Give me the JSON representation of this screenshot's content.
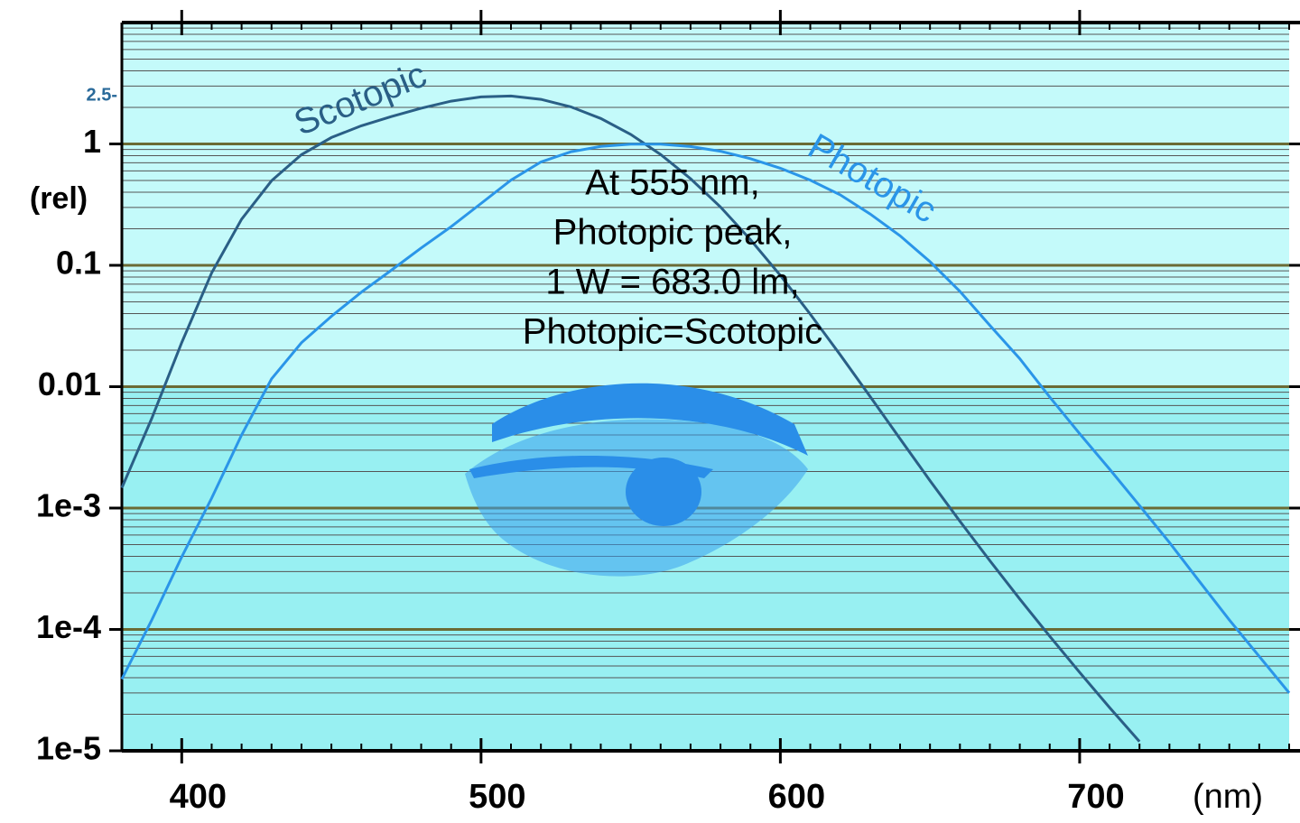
{
  "chart_data": {
    "type": "line",
    "x_label": "(nm)",
    "y_label": "(rel)",
    "x": [
      380,
      390,
      400,
      410,
      420,
      430,
      440,
      450,
      460,
      470,
      480,
      490,
      500,
      510,
      520,
      530,
      540,
      550,
      560,
      570,
      580,
      590,
      600,
      610,
      620,
      630,
      640,
      650,
      660,
      670,
      680,
      690,
      700,
      710,
      720,
      730,
      740,
      750,
      760,
      770
    ],
    "series": [
      {
        "name": "Scotopic",
        "color": "#2a5f86",
        "values": [
          0.00147,
          0.0055,
          0.0231,
          0.0867,
          0.24,
          0.497,
          0.816,
          1.13,
          1.41,
          1.68,
          1.97,
          2.25,
          2.44,
          2.48,
          2.33,
          2.02,
          1.62,
          1.2,
          0.818,
          0.517,
          0.302,
          0.163,
          0.0825,
          0.0396,
          0.0183,
          0.0083,
          0.00372,
          0.00168,
          0.000779,
          0.000368,
          0.000178,
          8.78e-05,
          4.43e-05,
          2.27e-05,
          1.19e-05,
          null,
          null,
          null,
          null,
          null
        ]
      },
      {
        "name": "Photopic",
        "color": "#2a95e8",
        "values": [
          3.9e-05,
          0.00012,
          0.000396,
          0.00121,
          0.004,
          0.0116,
          0.023,
          0.038,
          0.06,
          0.091,
          0.139,
          0.208,
          0.323,
          0.503,
          0.71,
          0.862,
          0.954,
          0.995,
          0.995,
          0.952,
          0.87,
          0.757,
          0.631,
          0.503,
          0.381,
          0.265,
          0.175,
          0.107,
          0.061,
          0.032,
          0.017,
          0.00821,
          0.0041,
          0.00209,
          0.00105,
          0.00052,
          0.000249,
          0.00012,
          6e-05,
          3e-05
        ]
      }
    ],
    "xlim": [
      380,
      770
    ],
    "xticks": [
      400,
      500,
      600,
      700
    ],
    "ylim": [
      1e-05,
      10
    ],
    "log_y": true,
    "yticks": [
      {
        "value": 1e-05,
        "label": "1e-5"
      },
      {
        "value": 0.0001,
        "label": "1e-4"
      },
      {
        "value": 0.001,
        "label": "1e-3"
      },
      0.01,
      0.1,
      1
    ],
    "scotopic_ticks": [
      {
        "value": 2.5,
        "label": "2.5-"
      }
    ],
    "minor_grid": true,
    "shade_below": 0.01,
    "annotation": [
      "At 555 nm,",
      "Photopic peak,",
      "1 W = 683.0 lm,",
      "Photopic=Scotopic"
    ]
  }
}
